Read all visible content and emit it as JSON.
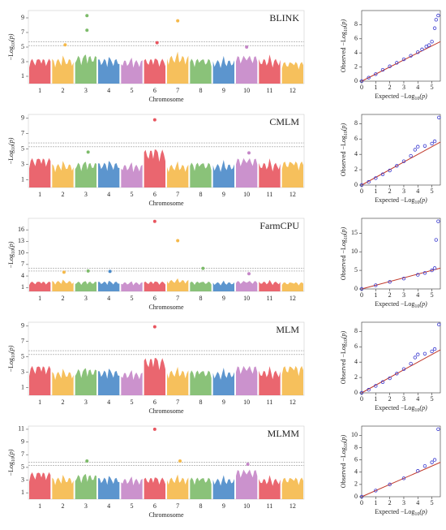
{
  "chart_data": [
    {
      "type": "manhattan",
      "title": "BLINK",
      "xlabel": "Chromosome",
      "ylabel": [
        "−Log",
        "10",
        "(p)"
      ],
      "chromosomes": [
        "1",
        "2",
        "3",
        "4",
        "5",
        "6",
        "7",
        "8",
        "9",
        "10",
        "11",
        "12"
      ],
      "colors": [
        "#e8555f",
        "#f5b94a",
        "#7dbb6a",
        "#4a8ac9",
        "#c586c8",
        "#e8555f",
        "#f5b94a",
        "#7dbb6a",
        "#4a8ac9",
        "#c586c8",
        "#e8555f",
        "#f5b94a"
      ],
      "tops": [
        4.0,
        4.0,
        4.5,
        4.0,
        3.8,
        4.0,
        4.5,
        4.0,
        3.8,
        4.5,
        4.0,
        3.5
      ],
      "hits": {
        "x": [
          1.6,
          2.55,
          2.55,
          5.6,
          6.5,
          9.5
        ],
        "values": [
          5.3,
          9.3,
          7.3,
          5.6,
          8.6,
          5.0
        ]
      },
      "thresholds": [
        5.2,
        5.7
      ],
      "xlim": [
        0,
        12
      ],
      "ylim": [
        0,
        10
      ],
      "yticks": [
        1,
        3,
        5,
        7,
        9
      ]
    },
    {
      "type": "qq",
      "xlabel": [
        "Expected −Log",
        "10",
        "(p)"
      ],
      "ylabel": [
        "Observed −Log",
        "10",
        "(p)"
      ],
      "color": "#3a3ad0",
      "line_color": "#c0392b",
      "x": [
        0,
        0.5,
        1,
        1.5,
        2,
        2.5,
        3,
        3.5,
        4,
        4.3,
        4.6,
        4.8,
        5.0,
        5.2,
        5.3,
        5.45
      ],
      "values": [
        0,
        0.5,
        1.0,
        1.6,
        2.1,
        2.6,
        3.1,
        3.6,
        4.1,
        4.5,
        4.9,
        5.1,
        5.6,
        7.5,
        8.7,
        9.3
      ],
      "xlim": [
        0,
        5.6
      ],
      "xticks": [
        0,
        1,
        2,
        3,
        4,
        5
      ],
      "ylim": [
        0,
        10
      ],
      "yticks": [
        0,
        2,
        4,
        6,
        8
      ]
    },
    {
      "type": "manhattan",
      "title": "CMLM",
      "xlabel": "Chromosome",
      "ylabel": [
        "−Log",
        "10",
        "(p)"
      ],
      "chromosomes": [
        "1",
        "2",
        "3",
        "4",
        "5",
        "6",
        "7",
        "8",
        "9",
        "10",
        "11",
        "12"
      ],
      "colors": [
        "#e8555f",
        "#f5b94a",
        "#7dbb6a",
        "#4a8ac9",
        "#c586c8",
        "#e8555f",
        "#f5b94a",
        "#7dbb6a",
        "#4a8ac9",
        "#c586c8",
        "#e8555f",
        "#f5b94a"
      ],
      "tops": [
        4.5,
        3.6,
        3.8,
        3.8,
        3.5,
        5.8,
        3.5,
        3.8,
        3.6,
        4.5,
        3.8,
        4.0
      ],
      "hits": {
        "x": [
          5.5,
          2.6,
          9.6
        ],
        "values": [
          8.8,
          4.6,
          4.5
        ]
      },
      "thresholds": [
        5.3,
        5.8
      ],
      "xlim": [
        0,
        12
      ],
      "ylim": [
        0,
        9.5
      ],
      "yticks": [
        1,
        3,
        5,
        7,
        9
      ]
    },
    {
      "type": "qq",
      "xlabel": [
        "Expected −Log",
        "10",
        "(p)"
      ],
      "ylabel": [
        "Observed −Log",
        "10",
        "(p)"
      ],
      "color": "#3a3ad0",
      "line_color": "#c0392b",
      "x": [
        0,
        0.5,
        1,
        1.5,
        2,
        2.5,
        3,
        3.5,
        3.8,
        4,
        4.5,
        5,
        5.2,
        5.5
      ],
      "values": [
        0,
        0.4,
        0.9,
        1.4,
        1.9,
        2.5,
        3.1,
        3.8,
        4.6,
        5.0,
        5.1,
        5.4,
        5.7,
        8.8
      ],
      "xlim": [
        0,
        5.6
      ],
      "xticks": [
        0,
        1,
        2,
        3,
        4,
        5
      ],
      "ylim": [
        0,
        9.2
      ],
      "yticks": [
        0,
        2,
        4,
        6,
        8
      ]
    },
    {
      "type": "manhattan",
      "title": "FarmCPU",
      "xlabel": "Chromosome",
      "ylabel": [
        "−Log",
        "10",
        "(p)"
      ],
      "chromosomes": [
        "1",
        "2",
        "3",
        "4",
        "5",
        "6",
        "7",
        "8",
        "9",
        "10",
        "11",
        "12"
      ],
      "colors": [
        "#e8555f",
        "#f5b94a",
        "#7dbb6a",
        "#4a8ac9",
        "#c586c8",
        "#e8555f",
        "#f5b94a",
        "#7dbb6a",
        "#4a8ac9",
        "#c586c8",
        "#e8555f",
        "#f5b94a"
      ],
      "tops": [
        3.0,
        3.2,
        3.0,
        3.0,
        2.8,
        3.0,
        3.5,
        3.0,
        2.8,
        3.2,
        3.0,
        2.8
      ],
      "hits": {
        "x": [
          5.5,
          6.5,
          7.6,
          1.55,
          2.6,
          3.55,
          9.6
        ],
        "values": [
          18.2,
          13.2,
          6.0,
          5.0,
          5.3,
          5.2,
          4.6
        ]
      },
      "thresholds": [
        5.3,
        6.0
      ],
      "xlim": [
        0,
        12
      ],
      "ylim": [
        0,
        19
      ],
      "yticks": [
        1,
        4,
        7,
        10,
        13,
        16
      ]
    },
    {
      "type": "qq",
      "xlabel": [
        "Expected −Log",
        "10",
        "(p)"
      ],
      "ylabel": [
        "Observed −Log",
        "10",
        "(p)"
      ],
      "color": "#3a3ad0",
      "line_color": "#c0392b",
      "x": [
        0,
        1,
        2,
        3,
        4,
        4.5,
        5,
        5.2,
        5.3,
        5.45
      ],
      "values": [
        0,
        1,
        1.9,
        2.8,
        3.8,
        4.3,
        5.0,
        5.6,
        13.2,
        18.2
      ],
      "xlim": [
        0,
        5.6
      ],
      "xticks": [
        0,
        1,
        2,
        3,
        4,
        5
      ],
      "ylim": [
        0,
        19
      ],
      "yticks": [
        0,
        5,
        10,
        15
      ]
    },
    {
      "type": "manhattan",
      "title": "MLM",
      "xlabel": "Chromosome",
      "ylabel": [
        "−Log",
        "10",
        "(p)"
      ],
      "chromosomes": [
        "1",
        "2",
        "3",
        "4",
        "5",
        "6",
        "7",
        "8",
        "9",
        "10",
        "11",
        "12"
      ],
      "colors": [
        "#e8555f",
        "#f5b94a",
        "#7dbb6a",
        "#4a8ac9",
        "#c586c8",
        "#e8555f",
        "#f5b94a",
        "#7dbb6a",
        "#4a8ac9",
        "#c586c8",
        "#e8555f",
        "#f5b94a"
      ],
      "tops": [
        4.5,
        3.6,
        4.0,
        3.8,
        3.5,
        5.7,
        3.8,
        3.8,
        3.6,
        4.5,
        3.8,
        4.5
      ],
      "hits": {
        "x": [
          5.5
        ],
        "values": [
          8.9
        ]
      },
      "thresholds": [
        5.3,
        5.8
      ],
      "xlim": [
        0,
        12
      ],
      "ylim": [
        0,
        9.5
      ],
      "yticks": [
        1,
        3,
        5,
        7,
        9
      ]
    },
    {
      "type": "qq",
      "xlabel": [
        "Expected −Log",
        "10",
        "(p)"
      ],
      "ylabel": [
        "Observed −Log",
        "10",
        "(p)"
      ],
      "color": "#3a3ad0",
      "line_color": "#c0392b",
      "x": [
        0,
        0.5,
        1,
        1.5,
        2,
        2.5,
        3,
        3.5,
        3.8,
        4,
        4.5,
        5,
        5.2,
        5.5
      ],
      "values": [
        0,
        0.4,
        0.9,
        1.4,
        1.9,
        2.5,
        3.1,
        3.8,
        4.6,
        5.0,
        5.1,
        5.4,
        5.7,
        8.9
      ],
      "xlim": [
        0,
        5.6
      ],
      "xticks": [
        0,
        1,
        2,
        3,
        4,
        5
      ],
      "ylim": [
        0,
        9.2
      ],
      "yticks": [
        0,
        2,
        4,
        6,
        8
      ]
    },
    {
      "type": "manhattan",
      "title": "MLMM",
      "xlabel": "Chromosome",
      "ylabel": [
        "−Log",
        "10",
        "(p)"
      ],
      "chromosomes": [
        "1",
        "2",
        "3",
        "4",
        "5",
        "6",
        "7",
        "8",
        "9",
        "10",
        "11",
        "12"
      ],
      "colors": [
        "#e8555f",
        "#f5b94a",
        "#7dbb6a",
        "#4a8ac9",
        "#c586c8",
        "#e8555f",
        "#f5b94a",
        "#7dbb6a",
        "#4a8ac9",
        "#c586c8",
        "#e8555f",
        "#f5b94a"
      ],
      "tops": [
        5.0,
        4.0,
        4.5,
        4.0,
        3.8,
        4.0,
        4.0,
        4.0,
        3.8,
        5.5,
        3.8,
        4.0
      ],
      "hits": {
        "x": [
          5.5,
          2.55,
          6.6,
          9.55
        ],
        "values": [
          11.0,
          6.0,
          6.0,
          5.5
        ]
      },
      "thresholds": [
        5.3,
        5.8
      ],
      "xlim": [
        0,
        12
      ],
      "ylim": [
        0,
        11.5
      ],
      "yticks": [
        1,
        3,
        5,
        7,
        9,
        11
      ]
    },
    {
      "type": "qq",
      "xlabel": [
        "Expected −Log",
        "10",
        "(p)"
      ],
      "ylabel": [
        "Observed −Log",
        "10",
        "(p)"
      ],
      "color": "#3a3ad0",
      "line_color": "#c0392b",
      "x": [
        0,
        1,
        2,
        3,
        4,
        4.5,
        5,
        5.2,
        5.45
      ],
      "values": [
        0,
        1,
        2,
        3,
        4.2,
        5.0,
        5.6,
        6.0,
        11.0
      ],
      "xlim": [
        0,
        5.6
      ],
      "xticks": [
        0,
        1,
        2,
        3,
        4,
        5
      ],
      "ylim": [
        0,
        11.5
      ],
      "yticks": [
        0,
        2,
        4,
        6,
        8,
        10
      ]
    }
  ]
}
